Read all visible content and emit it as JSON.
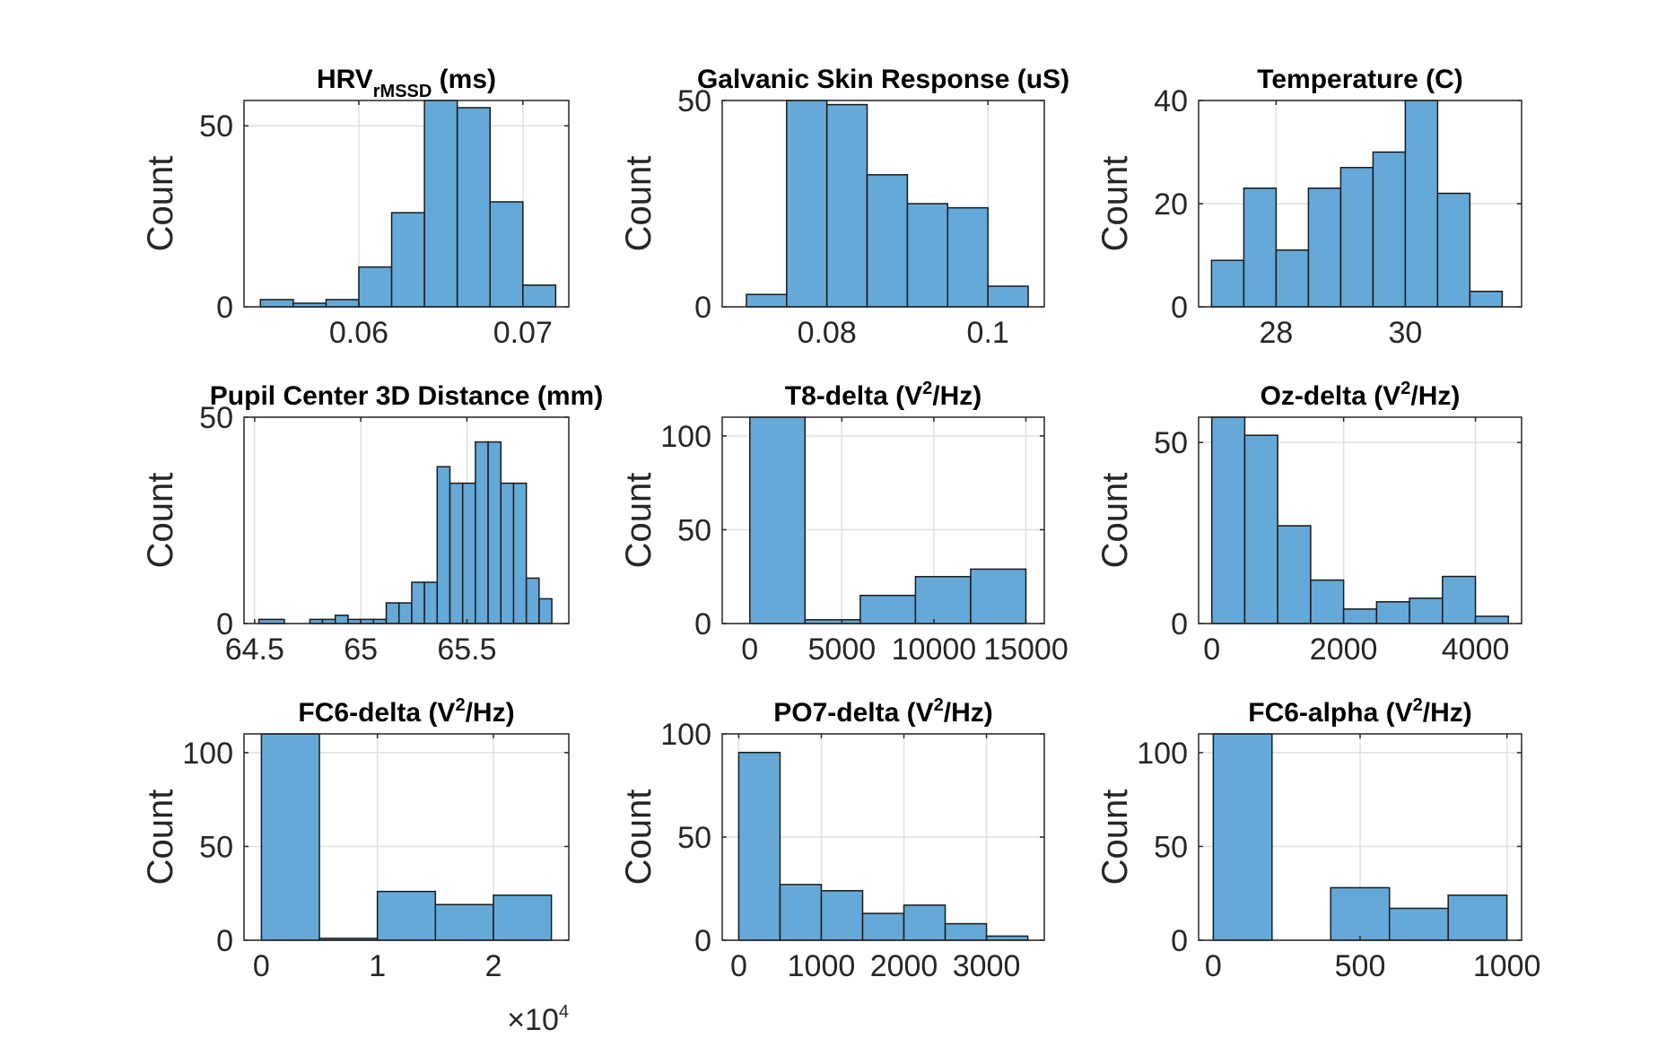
{
  "colors": {
    "bar": "#65a9d8",
    "edge": "#1a1a1a",
    "axis": "#262626",
    "grid": "#e1e1e1"
  },
  "chart_data": [
    {
      "type": "bar",
      "title": {
        "main": "HRV",
        "sub": "rMSSD",
        "sup": "",
        "suffix": " (ms)"
      },
      "ylabel": "Count",
      "xlim": [
        0.053,
        0.0728
      ],
      "ylim": [
        0,
        57
      ],
      "xticks": [
        0.06,
        0.07
      ],
      "xtick_labels": [
        "0.06",
        "0.07"
      ],
      "yticks": [
        0,
        50
      ],
      "ytick_labels": [
        "0",
        "50"
      ],
      "bin_edges": [
        0.054,
        0.056,
        0.058,
        0.06,
        0.062,
        0.064,
        0.066,
        0.068,
        0.07,
        0.072
      ],
      "counts": [
        2,
        1,
        2,
        11,
        26,
        57,
        55,
        29,
        6
      ]
    },
    {
      "type": "bar",
      "title": {
        "main": "Galvanic Skin Response (uS)",
        "sub": "",
        "sup": "",
        "suffix": ""
      },
      "ylabel": "Count",
      "xlim": [
        0.067,
        0.107
      ],
      "ylim": [
        0,
        50
      ],
      "xticks": [
        0.08,
        0.1
      ],
      "xtick_labels": [
        "0.08",
        "0.1"
      ],
      "yticks": [
        0,
        50
      ],
      "ytick_labels": [
        "0",
        "50"
      ],
      "bin_edges": [
        0.07,
        0.075,
        0.08,
        0.085,
        0.09,
        0.095,
        0.1,
        0.105
      ],
      "counts": [
        3,
        50,
        49,
        32,
        25,
        24,
        5
      ]
    },
    {
      "type": "bar",
      "title": {
        "main": "Temperature (C)",
        "sub": "",
        "sup": "",
        "suffix": ""
      },
      "ylabel": "Count",
      "xlim": [
        26.8,
        31.8
      ],
      "ylim": [
        0,
        40
      ],
      "xticks": [
        28,
        30
      ],
      "xtick_labels": [
        "28",
        "30"
      ],
      "yticks": [
        0,
        20,
        40
      ],
      "ytick_labels": [
        "0",
        "20",
        "40"
      ],
      "bin_edges": [
        27.0,
        27.5,
        28.0,
        28.5,
        29.0,
        29.5,
        30.0,
        30.5,
        31.0,
        31.5
      ],
      "counts": [
        9,
        23,
        11,
        23,
        27,
        30,
        40,
        22,
        3
      ]
    },
    {
      "type": "bar",
      "title": {
        "main": "Pupil Center 3D Distance (mm)",
        "sub": "",
        "sup": "",
        "suffix": ""
      },
      "ylabel": "Count",
      "xlim": [
        64.45,
        65.98
      ],
      "ylim": [
        0,
        50
      ],
      "xticks": [
        64.5,
        65,
        65.5
      ],
      "xtick_labels": [
        "64.5",
        "65",
        "65.5"
      ],
      "yticks": [
        0,
        50
      ],
      "ytick_labels": [
        "0",
        "50"
      ],
      "bin_edges": [
        64.52,
        64.64,
        64.76,
        64.82,
        64.88,
        64.94,
        65.0,
        65.06,
        65.12,
        65.18,
        65.24,
        65.3,
        65.36,
        65.42,
        65.48,
        65.54,
        65.6,
        65.66,
        65.72,
        65.78,
        65.84,
        65.9
      ],
      "counts": [
        1,
        0,
        1,
        1,
        2,
        1,
        1,
        1,
        5,
        5,
        10,
        10,
        38,
        34,
        34,
        44,
        44,
        34,
        34,
        11,
        6
      ]
    },
    {
      "type": "bar",
      "title": {
        "main": "T8-delta (V",
        "sub": "",
        "sup": "2",
        "suffix": "/Hz)"
      },
      "ylabel": "Count",
      "xlim": [
        -1500,
        16000
      ],
      "ylim": [
        0,
        110
      ],
      "xticks": [
        0,
        5000,
        10000,
        15000
      ],
      "xtick_labels": [
        "0",
        "5000",
        "10000",
        "15000"
      ],
      "yticks": [
        0,
        50,
        100
      ],
      "ytick_labels": [
        "0",
        "50",
        "100"
      ],
      "bin_edges": [
        0,
        3000,
        6000,
        9000,
        12000,
        15000
      ],
      "counts": [
        110,
        2,
        15,
        25,
        29
      ]
    },
    {
      "type": "bar",
      "title": {
        "main": "Oz-delta (V",
        "sub": "",
        "sup": "2",
        "suffix": "/Hz)"
      },
      "ylabel": "Count",
      "xlim": [
        -200,
        4700
      ],
      "ylim": [
        0,
        57
      ],
      "xticks": [
        0,
        2000,
        4000
      ],
      "xtick_labels": [
        "0",
        "2000",
        "4000"
      ],
      "yticks": [
        0,
        50
      ],
      "ytick_labels": [
        "0",
        "50"
      ],
      "bin_edges": [
        0,
        500,
        1000,
        1500,
        2000,
        2500,
        3000,
        3500,
        4000,
        4500
      ],
      "counts": [
        57,
        52,
        27,
        12,
        4,
        6,
        7,
        13,
        2
      ]
    },
    {
      "type": "bar",
      "title": {
        "main": "FC6-delta (V",
        "sub": "",
        "sup": "2",
        "suffix": "/Hz)"
      },
      "ylabel": "Count",
      "xlim": [
        -1500,
        26500
      ],
      "ylim": [
        0,
        110
      ],
      "xticks": [
        0,
        10000,
        20000
      ],
      "xtick_labels": [
        "0",
        "1",
        "2"
      ],
      "yticks": [
        0,
        50,
        100
      ],
      "ytick_labels": [
        "0",
        "50",
        "100"
      ],
      "x_exponent_label": {
        "base": "×10",
        "exp": "4"
      },
      "bin_edges": [
        0,
        5000,
        10000,
        15000,
        20000,
        25000
      ],
      "counts": [
        110,
        1,
        26,
        19,
        24
      ]
    },
    {
      "type": "bar",
      "title": {
        "main": "PO7-delta (V",
        "sub": "",
        "sup": "2",
        "suffix": "/Hz)"
      },
      "ylabel": "Count",
      "xlim": [
        -200,
        3700
      ],
      "ylim": [
        0,
        100
      ],
      "xticks": [
        0,
        1000,
        2000,
        3000
      ],
      "xtick_labels": [
        "0",
        "1000",
        "2000",
        "3000"
      ],
      "yticks": [
        0,
        50,
        100
      ],
      "ytick_labels": [
        "0",
        "50",
        "100"
      ],
      "bin_edges": [
        0,
        500,
        1000,
        1500,
        2000,
        2500,
        3000,
        3500
      ],
      "counts": [
        91,
        27,
        24,
        13,
        17,
        8,
        2
      ]
    },
    {
      "type": "bar",
      "title": {
        "main": "FC6-alpha (V",
        "sub": "",
        "sup": "2",
        "suffix": "/Hz)"
      },
      "ylabel": "Count",
      "xlim": [
        -50,
        1050
      ],
      "ylim": [
        0,
        110
      ],
      "xticks": [
        0,
        500,
        1000
      ],
      "xtick_labels": [
        "0",
        "500",
        "1000"
      ],
      "yticks": [
        0,
        50,
        100
      ],
      "ytick_labels": [
        "0",
        "50",
        "100"
      ],
      "bin_edges": [
        0,
        200,
        400,
        600,
        800,
        1000
      ],
      "counts": [
        110,
        0,
        28,
        17,
        24
      ]
    }
  ]
}
